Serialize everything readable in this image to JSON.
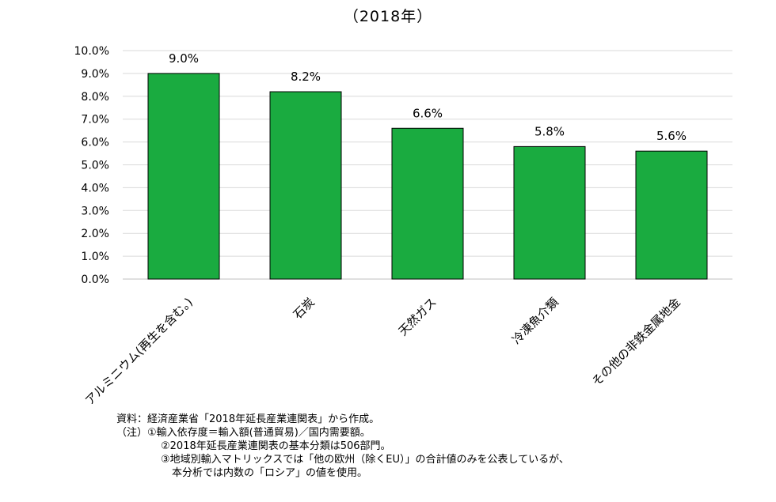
{
  "chart_data": {
    "type": "bar",
    "title": "（2018年）",
    "categories": [
      "アルミニウム(再生を含む。)",
      "石炭",
      "天然ガス",
      "冷凍魚介類",
      "その他の非鉄金属地金"
    ],
    "values": [
      9.0,
      8.2,
      6.6,
      5.8,
      5.6
    ],
    "data_labels": [
      "9.0%",
      "8.2%",
      "6.6%",
      "5.8%",
      "5.6%"
    ],
    "ylim": [
      0,
      10
    ],
    "yticks": [
      "0.0%",
      "1.0%",
      "2.0%",
      "3.0%",
      "4.0%",
      "5.0%",
      "6.0%",
      "7.0%",
      "8.0%",
      "9.0%",
      "10.0%"
    ],
    "grid": true,
    "bar_color": "#1aab40",
    "xlabel": "",
    "ylabel": ""
  },
  "notes": [
    "資料：経済産業省「2018年延長産業連関表」から作成。",
    "（注）①輸入依存度＝輸入額(普通貿易)／国内需要額。",
    "②2018年延長産業連関表の基本分類は506部門。",
    "③地域別輸入マトリックスでは「他の欧州（除くEU）」の合計値のみを公表しているが、",
    "本分析では内数の「ロシア」の値を使用。"
  ]
}
